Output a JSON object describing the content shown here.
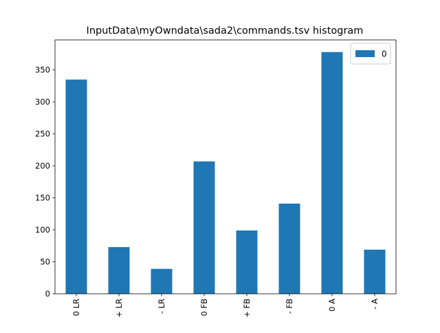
{
  "chart_data": {
    "type": "bar",
    "title": "InputData\\myOwndata\\sada2\\commands.tsv histogram",
    "xlabel": "",
    "ylabel": "",
    "categories": [
      "0 LR",
      "+ LR",
      "- LR",
      "0 FB",
      "+ FB",
      "- FB",
      "0 A",
      "- A"
    ],
    "series": [
      {
        "name": "0",
        "color": "#1f77b4",
        "values": [
          335,
          73,
          39,
          207,
          99,
          141,
          378,
          69
        ]
      }
    ],
    "ylim": [
      0,
      397
    ],
    "yticks": [
      0,
      50,
      100,
      150,
      200,
      250,
      300,
      350
    ],
    "grid": false,
    "legend_position": "top-right"
  }
}
